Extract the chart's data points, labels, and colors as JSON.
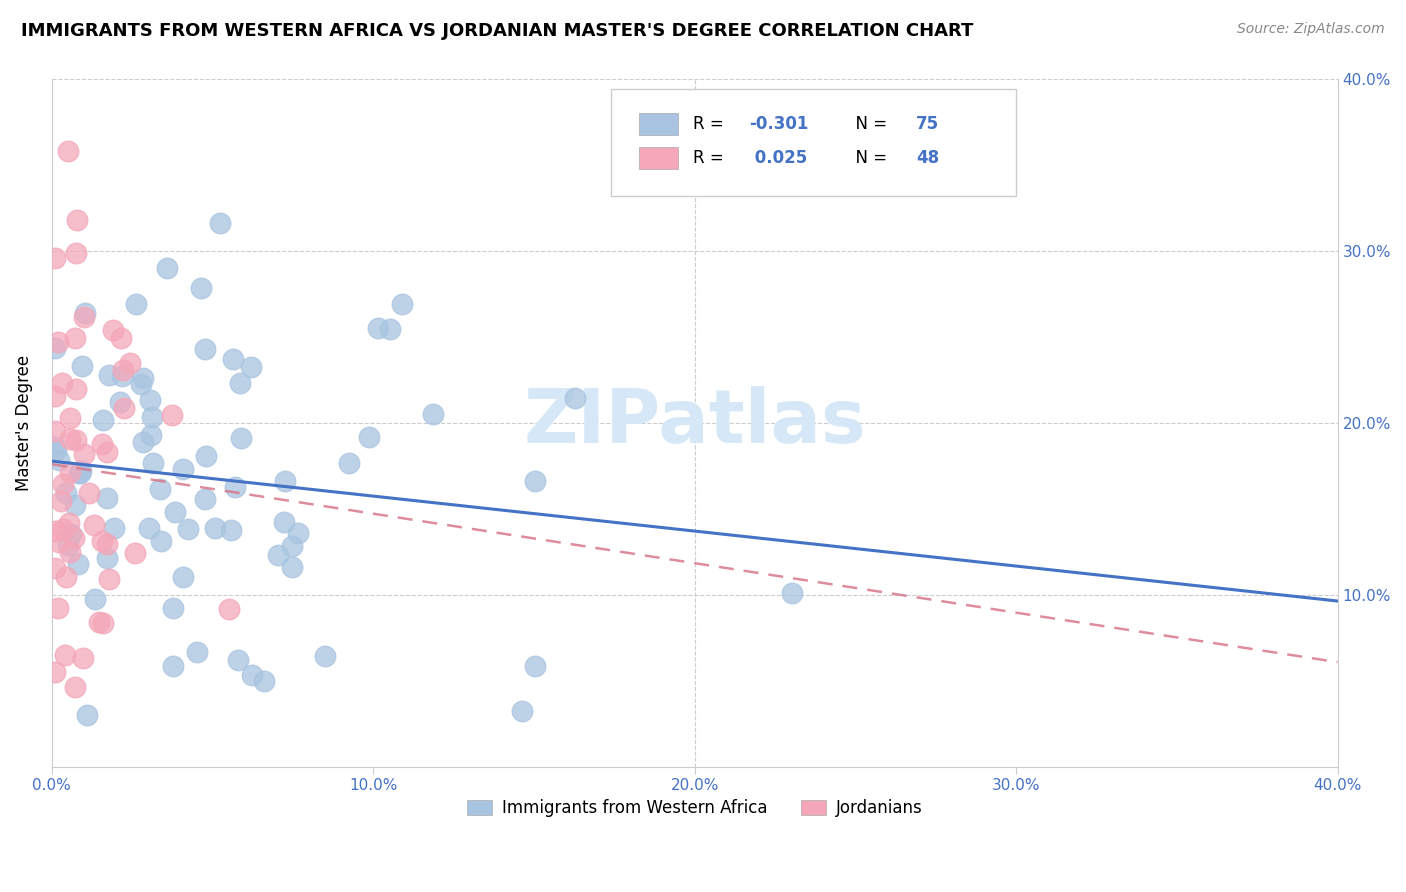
{
  "title": "IMMIGRANTS FROM WESTERN AFRICA VS JORDANIAN MASTER'S DEGREE CORRELATION CHART",
  "source": "Source: ZipAtlas.com",
  "ylabel": "Master's Degree",
  "legend_label1": "Immigrants from Western Africa",
  "legend_label2": "Jordanians",
  "R1": -0.301,
  "N1": 75,
  "R2": 0.025,
  "N2": 48,
  "blue_scatter_color": "#A8C4E0",
  "blue_line_color": "#4472C4",
  "pink_scatter_color": "#F4A7B9",
  "pink_line_color": "#D9788A",
  "watermark_color": "#D6E8F7",
  "axis_label_color": "#4472C4",
  "grid_color": "#cccccc",
  "title_fontsize": 13,
  "tick_fontsize": 11,
  "legend_fontsize": 12,
  "xlim": [
    0.0,
    0.4
  ],
  "ylim": [
    0.0,
    0.4
  ],
  "yticks": [
    0.1,
    0.2,
    0.3,
    0.4
  ],
  "xticks": [
    0.0,
    0.1,
    0.2,
    0.3,
    0.4
  ]
}
